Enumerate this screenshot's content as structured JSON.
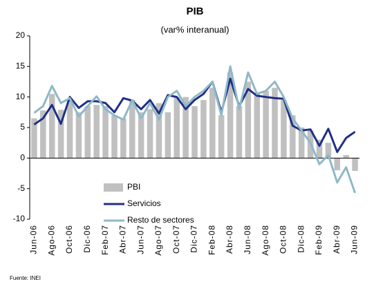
{
  "chart_data": {
    "type": "bar_line",
    "title": "PIB",
    "subtitle": "(var% interanual)",
    "source": "Fuente: INEI",
    "categories": [
      "Jun-06",
      null,
      "Ago-06",
      null,
      "Oct-06",
      null,
      "Dic-06",
      null,
      "Feb-07",
      null,
      "Abr-07",
      null,
      "Jun-07",
      null,
      "Ago-07",
      null,
      "Oct-07",
      null,
      "Dic-07",
      null,
      "Feb-08",
      null,
      "Abr-08",
      null,
      "Jun-08",
      null,
      "Ago-08",
      null,
      "Oct-08",
      null,
      "Dic-08",
      null,
      "Feb-09",
      null,
      "Abr-09",
      null,
      "Jun-09"
    ],
    "series": [
      {
        "name": "PBI",
        "kind": "bar",
        "color": "#c0c0c0",
        "values": [
          6.5,
          7.8,
          10.5,
          7.9,
          9.5,
          7.5,
          8.5,
          8.7,
          8.5,
          7.0,
          6.5,
          9.5,
          7.5,
          8.0,
          9.0,
          7.5,
          10.0,
          10.0,
          8.5,
          9.5,
          11.5,
          7.0,
          14.0,
          8.5,
          12.5,
          10.5,
          11.0,
          11.5,
          9.5,
          7.0,
          5.0,
          4.5,
          3.0,
          2.5,
          -2.0,
          0.5,
          -2.1
        ]
      },
      {
        "name": "Servicios",
        "kind": "line",
        "color": "#1f2f87",
        "values": [
          5.5,
          6.5,
          8.7,
          5.6,
          10.0,
          8.2,
          9.3,
          9.3,
          9.0,
          7.5,
          9.8,
          9.4,
          8.0,
          9.5,
          7.3,
          10.3,
          10.0,
          8.0,
          9.5,
          10.5,
          12.5,
          7.5,
          13.0,
          8.5,
          11.3,
          10.2,
          10.0,
          9.8,
          9.7,
          5.3,
          4.5,
          4.7,
          2.0,
          4.8,
          1.0,
          3.3,
          4.3
        ]
      },
      {
        "name": "Resto de sectores",
        "kind": "line",
        "color": "#8fb8c8",
        "values": [
          7.4,
          8.5,
          11.8,
          9.0,
          9.8,
          6.8,
          8.5,
          10.1,
          8.0,
          7.0,
          6.3,
          9.5,
          6.5,
          9.0,
          6.3,
          10.0,
          11.0,
          8.5,
          10.0,
          11.0,
          12.5,
          7.0,
          15.0,
          8.0,
          14.0,
          10.5,
          11.0,
          12.5,
          10.0,
          6.5,
          4.5,
          2.5,
          -1.0,
          0.5,
          -4.0,
          -1.5,
          -5.7
        ]
      }
    ],
    "ylim": [
      -10,
      20
    ],
    "yticks": [
      -10,
      -5,
      0,
      5,
      10,
      15,
      20
    ],
    "grid": false,
    "legend": "lower-left"
  }
}
